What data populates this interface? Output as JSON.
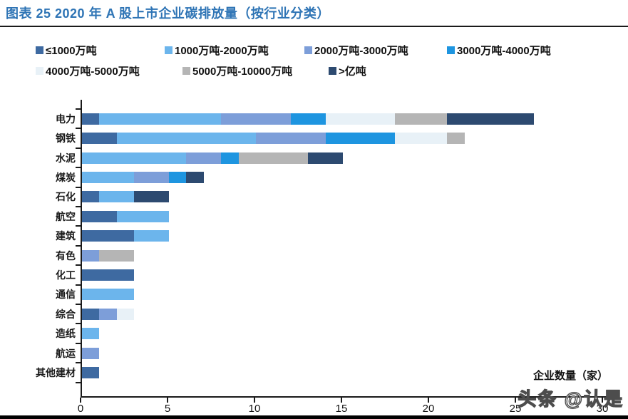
{
  "page": {
    "title": "图表 25 2020 年 A 股上市企业碳排放量（按行业分类）",
    "title_color": "#2e74b5",
    "watermark": "头条 @认是"
  },
  "chart_data": {
    "type": "bar",
    "orientation": "horizontal",
    "stacked": true,
    "title": "2020 年 A 股上市企业碳排放量（按行业分类）",
    "xlabel": "企业数量（家）",
    "ylabel": "",
    "xlim": [
      0,
      30
    ],
    "xticks": [
      0,
      5,
      10,
      15,
      20,
      25,
      30
    ],
    "grid": false,
    "legend_position": "top",
    "categories": [
      "电力",
      "钢铁",
      "水泥",
      "煤炭",
      "石化",
      "航空",
      "建筑",
      "有色",
      "化工",
      "通信",
      "综合",
      "造纸",
      "航运",
      "其他建材"
    ],
    "series": [
      {
        "name": "≤1000万吨",
        "color": "#3e6aa1",
        "values": [
          1,
          2,
          0,
          0,
          1,
          2,
          3,
          0,
          3,
          0,
          1,
          0,
          0,
          1
        ]
      },
      {
        "name": "1000万吨-2000万吨",
        "color": "#6cb5ec",
        "values": [
          7,
          8,
          6,
          3,
          2,
          3,
          2,
          0,
          0,
          3,
          0,
          1,
          0,
          0
        ]
      },
      {
        "name": "2000万吨-3000万吨",
        "color": "#7d9ed9",
        "values": [
          4,
          4,
          2,
          2,
          0,
          0,
          0,
          1,
          0,
          0,
          1,
          0,
          1,
          0
        ]
      },
      {
        "name": "3000万吨-4000万吨",
        "color": "#1e95e0",
        "values": [
          2,
          4,
          1,
          1,
          0,
          0,
          0,
          0,
          0,
          0,
          0,
          0,
          0,
          0
        ]
      },
      {
        "name": "4000万吨-5000万吨",
        "color": "#e8f1f7",
        "values": [
          4,
          3,
          0,
          0,
          0,
          0,
          0,
          0,
          0,
          0,
          1,
          0,
          0,
          0
        ]
      },
      {
        "name": "5000万吨-10000万吨",
        "color": "#b5b5b5",
        "values": [
          3,
          1,
          4,
          0,
          0,
          0,
          0,
          2,
          0,
          0,
          0,
          0,
          0,
          0
        ]
      },
      {
        "name": ">亿吨",
        "color": "#2d4a70",
        "values": [
          5,
          0,
          2,
          1,
          2,
          0,
          0,
          0,
          0,
          0,
          0,
          0,
          0,
          0
        ]
      }
    ],
    "totals": [
      26,
      22,
      15,
      7,
      5,
      5,
      5,
      3,
      3,
      3,
      3,
      1,
      1,
      1
    ]
  }
}
